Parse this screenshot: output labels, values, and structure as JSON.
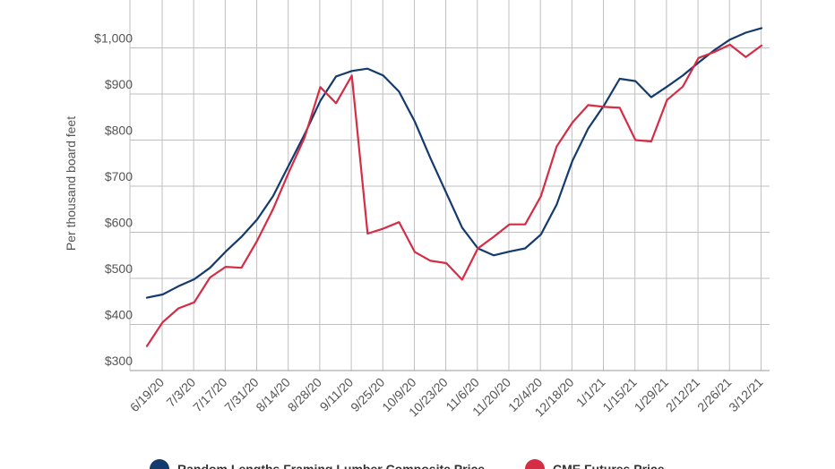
{
  "chart_data": {
    "type": "line",
    "title": "",
    "xlabel": "",
    "ylabel": "Per thousand board feet",
    "ylim": [
      300,
      1100
    ],
    "y_ticks": [
      300,
      400,
      500,
      600,
      700,
      800,
      900,
      1000
    ],
    "y_tick_labels": [
      "$300",
      "$400",
      "$500",
      "$600",
      "$700",
      "$800",
      "$900",
      "$1,000"
    ],
    "x": [
      "6/19/20",
      "6/26/20",
      "7/3/20",
      "7/10/20",
      "7/17/20",
      "7/24/20",
      "7/31/20",
      "8/7/20",
      "8/14/20",
      "8/21/20",
      "8/28/20",
      "9/4/20",
      "9/11/20",
      "9/18/20",
      "9/25/20",
      "10/2/20",
      "10/9/20",
      "10/16/20",
      "10/23/20",
      "10/30/20",
      "11/6/20",
      "11/13/20",
      "11/20/20",
      "11/27/20",
      "12/4/20",
      "12/11/20",
      "12/18/20",
      "12/25/20",
      "1/1/21",
      "1/8/21",
      "1/15/21",
      "1/22/21",
      "1/29/21",
      "2/5/21",
      "2/12/21",
      "2/19/21",
      "2/26/21",
      "3/5/21",
      "3/12/21",
      "3/19/21"
    ],
    "x_tick_labels": [
      "6/19/20",
      "7/3/20",
      "7/17/20",
      "7/31/20",
      "8/14/20",
      "8/28/20",
      "9/11/20",
      "9/25/20",
      "10/9/20",
      "10/23/20",
      "11/6/20",
      "11/20/20",
      "12/4/20",
      "12/18/20",
      "1/1/21",
      "1/15/21",
      "1/29/21",
      "2/12/21",
      "2/26/21",
      "3/12/21"
    ],
    "grid": true,
    "legend_position": "bottom",
    "series": [
      {
        "name": "Random Lengths Framing Lumber Composite Price",
        "color": "#143a6e",
        "values": [
          458,
          465,
          483,
          498,
          523,
          558,
          590,
          628,
          678,
          745,
          812,
          885,
          938,
          950,
          955,
          940,
          905,
          840,
          760,
          685,
          610,
          565,
          550,
          558,
          565,
          595,
          660,
          755,
          825,
          875,
          933,
          928,
          893,
          916,
          940,
          968,
          995,
          1018,
          1033,
          1043
        ]
      },
      {
        "name": "CME Futures Price",
        "color": "#d42d45",
        "values": [
          353,
          405,
          435,
          448,
          502,
          525,
          523,
          582,
          650,
          730,
          805,
          915,
          880,
          940,
          597,
          608,
          622,
          557,
          538,
          533,
          497,
          565,
          590,
          617,
          617,
          678,
          786,
          838,
          876,
          872,
          870,
          800,
          797,
          887,
          916,
          978,
          991,
          1007,
          980,
          1005
        ]
      }
    ]
  }
}
